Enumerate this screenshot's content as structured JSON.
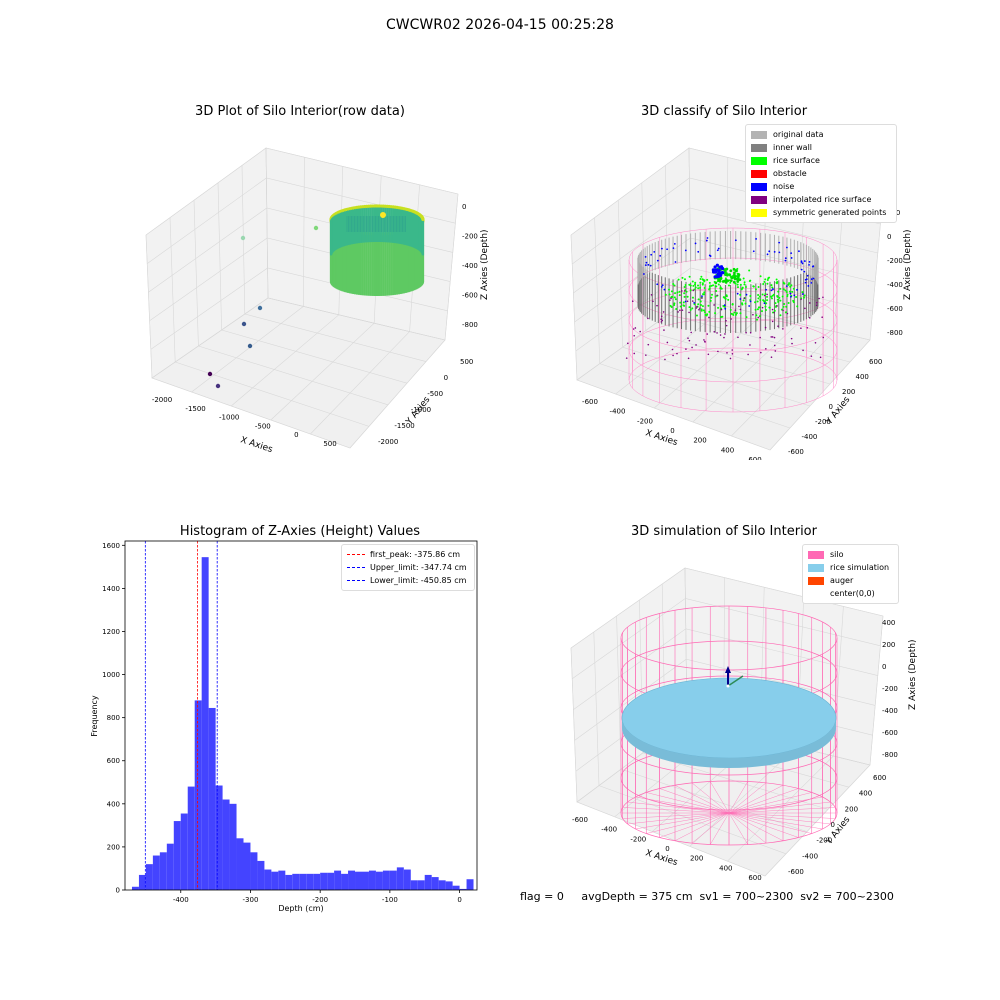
{
  "suptitle": "CWCWR02 2026-04-15 00:25:28",
  "footer": "flag = 0     avgDepth = 375 cm  sv1 = 700~2300  sv2 = 700~2300",
  "chart_data": [
    {
      "type": "scatter",
      "projection": "3d",
      "title": "3D Plot of Silo Interior(row data)",
      "xlabel": "X Axies",
      "ylabel": "Y Axies",
      "zlabel": "Z Axies (Depth)",
      "x_ticks": [
        "-2000",
        "-1500",
        "-1000",
        "-500",
        "0",
        "500"
      ],
      "y_ticks": [
        "500",
        "0",
        "-500",
        "-1000",
        "-1500",
        "-2000"
      ],
      "z_ticks": [
        "0",
        "-200",
        "-400",
        "-600",
        "-800"
      ],
      "colormap": "viridis",
      "outlier_points": [
        {
          "x": -1900,
          "y": -1800,
          "z": -900
        },
        {
          "x": -1800,
          "y": -1900,
          "z": -950
        },
        {
          "x": -1500,
          "y": -1400,
          "z": -700
        },
        {
          "x": -1400,
          "y": -1300,
          "z": -650
        },
        {
          "x": -1200,
          "y": -1100,
          "z": -600
        },
        {
          "x": -1500,
          "y": 200,
          "z": -200
        },
        {
          "x": -500,
          "y": 300,
          "z": -100
        }
      ]
    },
    {
      "type": "scatter",
      "projection": "3d",
      "title": "3D classify of Silo Interior",
      "xlabel": "X Axies",
      "ylabel": "Y Axies",
      "zlabel": "Z Axies (Depth)",
      "x_ticks": [
        "-600",
        "-400",
        "-200",
        "0",
        "200",
        "400",
        "600"
      ],
      "y_ticks": [
        "600",
        "400",
        "200",
        "0",
        "-200",
        "-400",
        "-600"
      ],
      "z_ticks": [
        "200",
        "0",
        "-200",
        "-400",
        "-600",
        "-800"
      ],
      "legend_position": "upper right",
      "legend": [
        {
          "label": "original data",
          "color": "#b3b3b3"
        },
        {
          "label": "inner wall",
          "color": "#808080"
        },
        {
          "label": "rice surface",
          "color": "#00ff00"
        },
        {
          "label": "obstacle",
          "color": "#ff0000"
        },
        {
          "label": "noise",
          "color": "#0000ff"
        },
        {
          "label": "interpolated rice surface",
          "color": "#800080"
        },
        {
          "label": "symmetric generated points",
          "color": "#ffff00"
        }
      ]
    },
    {
      "type": "bar",
      "title": "Histogram of Z-Axies (Height) Values",
      "xlabel": "Depth (cm)",
      "ylabel": "Frequency",
      "xlim": [
        -480,
        25
      ],
      "ylim": [
        0,
        1620
      ],
      "x_ticks": [
        -400,
        -300,
        -200,
        -100,
        0
      ],
      "y_ticks": [
        0,
        200,
        400,
        600,
        800,
        1000,
        1200,
        1400,
        1600
      ],
      "bar_color": "#4444ff",
      "bin_width": 10,
      "bin_start": -470,
      "values": [
        15,
        70,
        120,
        160,
        175,
        215,
        320,
        355,
        480,
        880,
        1545,
        845,
        485,
        420,
        400,
        240,
        220,
        175,
        135,
        95,
        85,
        90,
        70,
        75,
        75,
        75,
        75,
        80,
        80,
        90,
        75,
        90,
        85,
        85,
        90,
        85,
        90,
        90,
        105,
        95,
        45,
        45,
        70,
        60,
        45,
        40,
        20,
        5,
        50
      ],
      "legend_position": "upper right",
      "lines": [
        {
          "label": "first_peak: -375.86 cm",
          "x": -375.86,
          "color": "#ff0000"
        },
        {
          "label": "Upper_limit: -347.74 cm",
          "x": -347.74,
          "color": "#0000ff"
        },
        {
          "label": "Lower_limit: -450.85 cm",
          "x": -450.85,
          "color": "#0000ff"
        }
      ]
    },
    {
      "type": "scatter",
      "projection": "3d",
      "title": "3D simulation of Silo Interior",
      "xlabel": "X Axies",
      "ylabel": "Y Axies",
      "zlabel": "Z Axies (Depth)",
      "x_ticks": [
        "-600",
        "-400",
        "-200",
        "0",
        "200",
        "400",
        "600"
      ],
      "y_ticks": [
        "600",
        "400",
        "200",
        "0",
        "-200",
        "-400",
        "-600"
      ],
      "z_ticks": [
        "400",
        "200",
        "0",
        "-200",
        "-400",
        "-600",
        "-800"
      ],
      "legend_position": "upper right",
      "legend": [
        {
          "label": "silo",
          "color": "#ff69b4"
        },
        {
          "label": "rice simulation",
          "color": "#87ceeb"
        },
        {
          "label": "auger",
          "color": "#ff4500"
        },
        {
          "label": "center(0,0)",
          "color": "#ffffff"
        }
      ]
    }
  ]
}
